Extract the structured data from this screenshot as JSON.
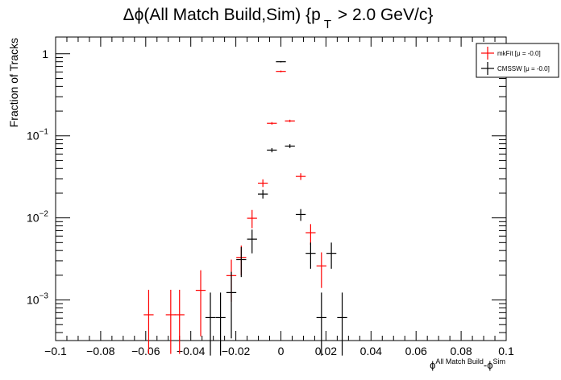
{
  "chart_data": {
    "type": "scatter",
    "title": {
      "prefix": "Δϕ(All Match Build,Sim) {p",
      "sub": "T",
      "suffix": " > 2.0 GeV/c}"
    },
    "ylabel": "Fraction of Tracks",
    "xlabel": {
      "phi1": "ϕ",
      "sup1": "All Match Build",
      "dash": "-ϕ",
      "sup2": "Sim"
    },
    "xlim": [
      -0.1,
      0.1
    ],
    "ylim": [
      0.00032,
      1.6
    ],
    "yscale": "log",
    "grid": false,
    "legend_position": "top-right",
    "x_tick_labels": [
      "−0.1",
      "−0.08",
      "−0.06",
      "−0.04",
      "−0.02",
      "0",
      "0.02",
      "0.04",
      "0.06",
      "0.08",
      "0.1"
    ],
    "y_tick_labels": [
      {
        "base": "1",
        "exp": ""
      },
      {
        "base": "10",
        "exp": "−1"
      },
      {
        "base": "10",
        "exp": "−2"
      },
      {
        "base": "10",
        "exp": "−3"
      }
    ],
    "series": [
      {
        "name": "mkFit  [μ = -0.0]",
        "color": "#ff0000",
        "points": [
          {
            "x": -0.0587,
            "y": 0.00066,
            "ylo": 0.00022,
            "yhi": 0.00133
          },
          {
            "x": -0.0489,
            "y": 0.00066,
            "ylo": 0.00022,
            "yhi": 0.00133
          },
          {
            "x": -0.045,
            "y": 0.00066,
            "ylo": 0.00022,
            "yhi": 0.00133
          },
          {
            "x": -0.0356,
            "y": 0.00131,
            "ylo": 0.00036,
            "yhi": 0.0023
          },
          {
            "x": -0.022,
            "y": 0.00198,
            "ylo": 0.00095,
            "yhi": 0.0031
          },
          {
            "x": -0.0176,
            "y": 0.0033,
            "ylo": 0.002,
            "yhi": 0.0046
          },
          {
            "x": -0.0128,
            "y": 0.0099,
            "ylo": 0.0075,
            "yhi": 0.0125
          },
          {
            "x": -0.008,
            "y": 0.0265,
            "ylo": 0.0238,
            "yhi": 0.0295
          },
          {
            "x": -0.004,
            "y": 0.142,
            "ylo": 0.137,
            "yhi": 0.147
          },
          {
            "x": 0.0,
            "y": 0.61,
            "ylo": 0.595,
            "yhi": 0.625
          },
          {
            "x": 0.004,
            "y": 0.152,
            "ylo": 0.147,
            "yhi": 0.157
          },
          {
            "x": 0.0088,
            "y": 0.032,
            "ylo": 0.029,
            "yhi": 0.035
          },
          {
            "x": 0.0132,
            "y": 0.0066,
            "ylo": 0.0047,
            "yhi": 0.0084
          },
          {
            "x": 0.018,
            "y": 0.0026,
            "ylo": 0.0014,
            "yhi": 0.0038
          }
        ]
      },
      {
        "name": "CMSSW  [μ = -0.0]",
        "color": "#000000",
        "points": [
          {
            "x": -0.0313,
            "y": 0.00061,
            "ylo": 0.00021,
            "yhi": 0.00123
          },
          {
            "x": -0.0268,
            "y": 0.00061,
            "ylo": 0.00021,
            "yhi": 0.00123
          },
          {
            "x": -0.022,
            "y": 0.00123,
            "ylo": 0.00034,
            "yhi": 0.0022
          },
          {
            "x": -0.0176,
            "y": 0.0031,
            "ylo": 0.0019,
            "yhi": 0.0044
          },
          {
            "x": -0.0128,
            "y": 0.0055,
            "ylo": 0.0037,
            "yhi": 0.0072
          },
          {
            "x": -0.008,
            "y": 0.0195,
            "ylo": 0.0172,
            "yhi": 0.022
          },
          {
            "x": -0.004,
            "y": 0.067,
            "ylo": 0.063,
            "yhi": 0.071
          },
          {
            "x": 0.0,
            "y": 0.8,
            "ylo": 0.785,
            "yhi": 0.815
          },
          {
            "x": 0.004,
            "y": 0.075,
            "ylo": 0.071,
            "yhi": 0.079
          },
          {
            "x": 0.0088,
            "y": 0.011,
            "ylo": 0.0092,
            "yhi": 0.0128
          },
          {
            "x": 0.0132,
            "y": 0.0037,
            "ylo": 0.0024,
            "yhi": 0.005
          },
          {
            "x": 0.018,
            "y": 0.00061,
            "ylo": 0.00021,
            "yhi": 0.00123
          },
          {
            "x": 0.0224,
            "y": 0.0037,
            "ylo": 0.0024,
            "yhi": 0.005
          },
          {
            "x": 0.0272,
            "y": 0.00061,
            "ylo": 0.00021,
            "yhi": 0.00123
          }
        ]
      }
    ]
  }
}
